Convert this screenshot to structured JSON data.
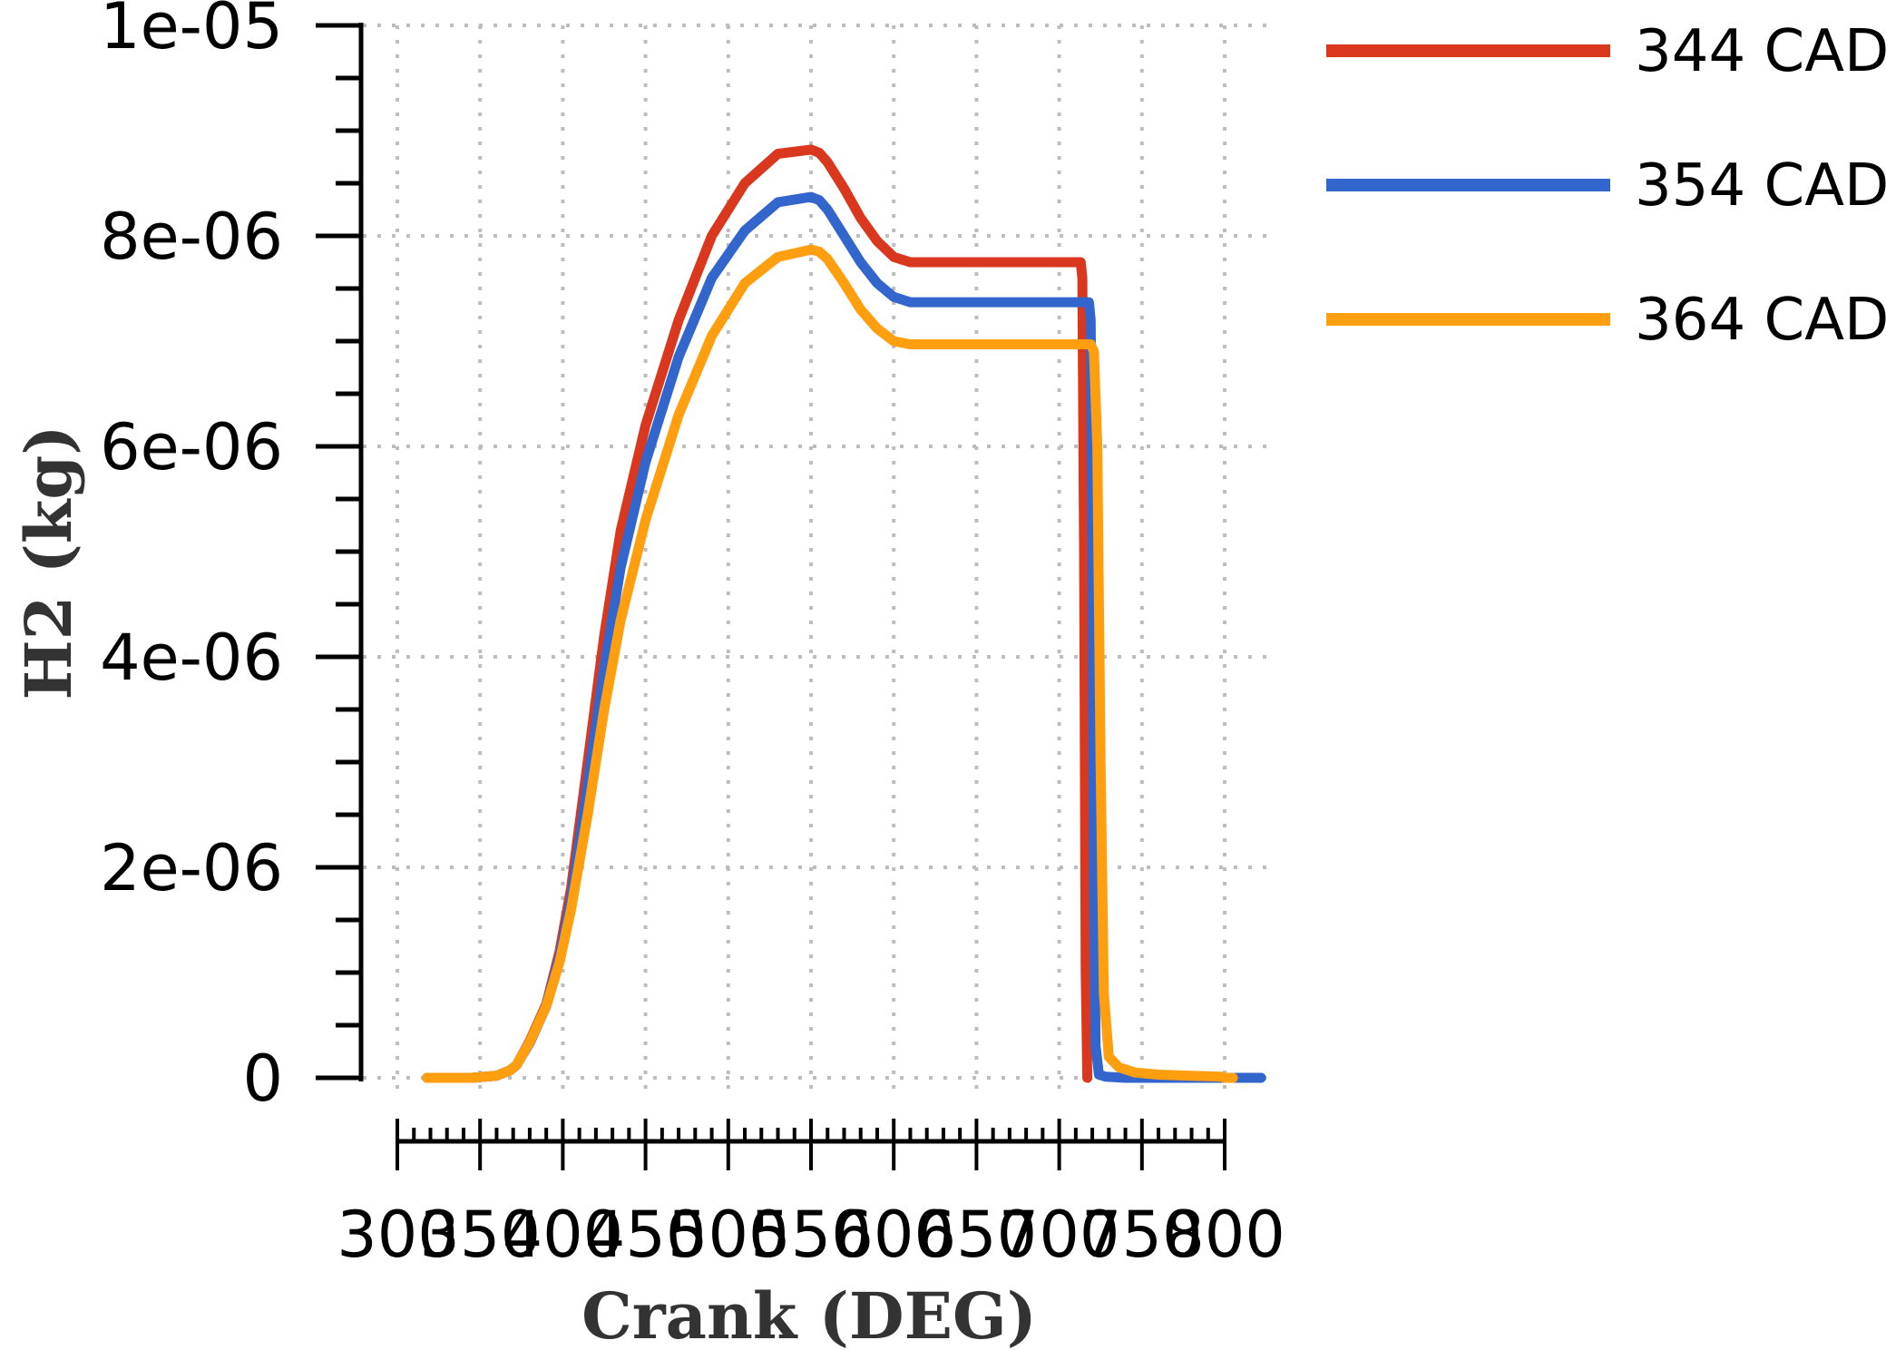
{
  "chart_data": {
    "type": "line",
    "xlabel": "Crank (DEG)",
    "ylabel": "H2 (kg)",
    "xlim": [
      300,
      800
    ],
    "ylim": [
      0,
      1e-05
    ],
    "x_ticks": [
      "300",
      "350",
      "400",
      "450",
      "500",
      "550",
      "600",
      "650",
      "700",
      "750",
      "800"
    ],
    "y_ticks": [
      "0",
      "2e-06",
      "4e-06",
      "6e-06",
      "8e-06",
      "1e-05"
    ],
    "grid": true,
    "legend_position": "top-right",
    "series": [
      {
        "name": "344 CAD",
        "color": "#D9381E",
        "x": [
          318,
          345,
          360,
          368,
          372,
          380,
          390,
          398,
          405,
          415,
          425,
          435,
          450,
          470,
          490,
          510,
          530,
          550,
          555,
          560,
          570,
          580,
          590,
          600,
          610,
          620,
          640,
          680,
          700,
          713,
          714,
          715,
          716,
          717
        ],
        "y": [
          0,
          0,
          2e-08,
          7e-08,
          1.2e-07,
          3.5e-07,
          7e-07,
          1.2e-06,
          1.8e-06,
          3e-06,
          4.2e-06,
          5.2e-06,
          6.2e-06,
          7.2e-06,
          8e-06,
          8.5e-06,
          8.78e-06,
          8.82e-06,
          8.79e-06,
          8.7e-06,
          8.45e-06,
          8.17e-06,
          7.95e-06,
          7.8e-06,
          7.75e-06,
          7.75e-06,
          7.75e-06,
          7.75e-06,
          7.75e-06,
          7.75e-06,
          7.6e-06,
          5e-06,
          1e-06,
          0
        ]
      },
      {
        "name": "354 CAD",
        "color": "#3366CC",
        "x": [
          318,
          345,
          360,
          368,
          372,
          380,
          390,
          398,
          405,
          415,
          425,
          435,
          450,
          470,
          490,
          510,
          530,
          550,
          555,
          560,
          570,
          580,
          590,
          600,
          610,
          620,
          640,
          680,
          700,
          718,
          719,
          720,
          721,
          722,
          724,
          728,
          740,
          760,
          780,
          798,
          800,
          822
        ],
        "y": [
          0,
          0,
          2e-08,
          7e-08,
          1.2e-07,
          3.3e-07,
          6.8e-07,
          1.15e-06,
          1.7e-06,
          2.8e-06,
          3.9e-06,
          4.85e-06,
          5.85e-06,
          6.85e-06,
          7.6e-06,
          8.05e-06,
          8.32e-06,
          8.37e-06,
          8.34e-06,
          8.25e-06,
          8e-06,
          7.75e-06,
          7.55e-06,
          7.42e-06,
          7.37e-06,
          7.37e-06,
          7.37e-06,
          7.37e-06,
          7.37e-06,
          7.37e-06,
          7.2e-06,
          5e-06,
          2e-06,
          3e-07,
          3e-08,
          1e-08,
          0,
          0,
          0,
          0,
          0,
          0
        ]
      },
      {
        "name": "364 CAD",
        "color": "#FF9E0F",
        "x": [
          318,
          345,
          360,
          368,
          372,
          380,
          390,
          398,
          405,
          415,
          425,
          435,
          450,
          470,
          490,
          510,
          530,
          550,
          555,
          560,
          570,
          580,
          590,
          600,
          610,
          620,
          640,
          680,
          700,
          719,
          721,
          723,
          725,
          727,
          730,
          736,
          746,
          760,
          780,
          798,
          800,
          805
        ],
        "y": [
          0,
          0,
          2e-08,
          7e-08,
          1.2e-07,
          3.4e-07,
          6.8e-07,
          1.1e-06,
          1.6e-06,
          2.5e-06,
          3.5e-06,
          4.35e-06,
          5.3e-06,
          6.3e-06,
          7.05e-06,
          7.55e-06,
          7.8e-06,
          7.87e-06,
          7.85e-06,
          7.78e-06,
          7.55e-06,
          7.3e-06,
          7.12e-06,
          7e-06,
          6.97e-06,
          6.97e-06,
          6.97e-06,
          6.97e-06,
          6.97e-06,
          6.97e-06,
          6.9e-06,
          6e-06,
          3e-06,
          8e-07,
          2e-07,
          1e-07,
          5e-08,
          3e-08,
          2e-08,
          1e-08,
          0,
          0
        ]
      }
    ]
  }
}
